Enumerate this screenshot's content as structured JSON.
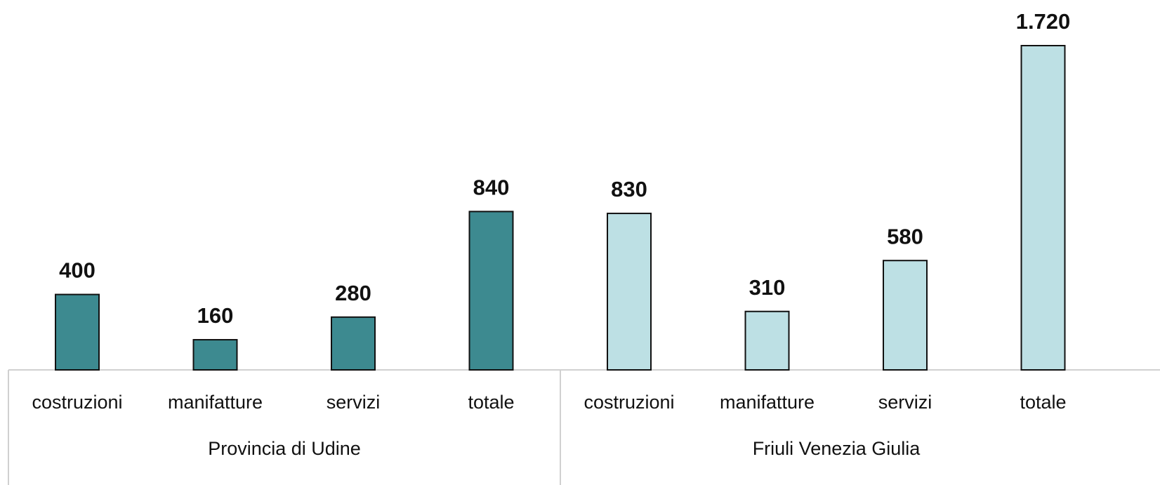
{
  "chart_data": {
    "type": "bar",
    "groups": [
      {
        "name": "Provincia di Udine",
        "color": "#3d8a90",
        "categories": [
          "costruzioni",
          "manifatture",
          "servizi",
          "totale"
        ],
        "values": [
          400,
          160,
          280,
          840
        ],
        "value_labels": [
          "400",
          "160",
          "280",
          "840"
        ]
      },
      {
        "name": "Friuli Venezia Giulia",
        "color": "#bde0e4",
        "categories": [
          "costruzioni",
          "manifatture",
          "servizi",
          "totale"
        ],
        "values": [
          830,
          310,
          580,
          1720
        ],
        "value_labels": [
          "830",
          "310",
          "580",
          "1.720"
        ]
      }
    ],
    "ylim": [
      0,
      1720
    ]
  }
}
